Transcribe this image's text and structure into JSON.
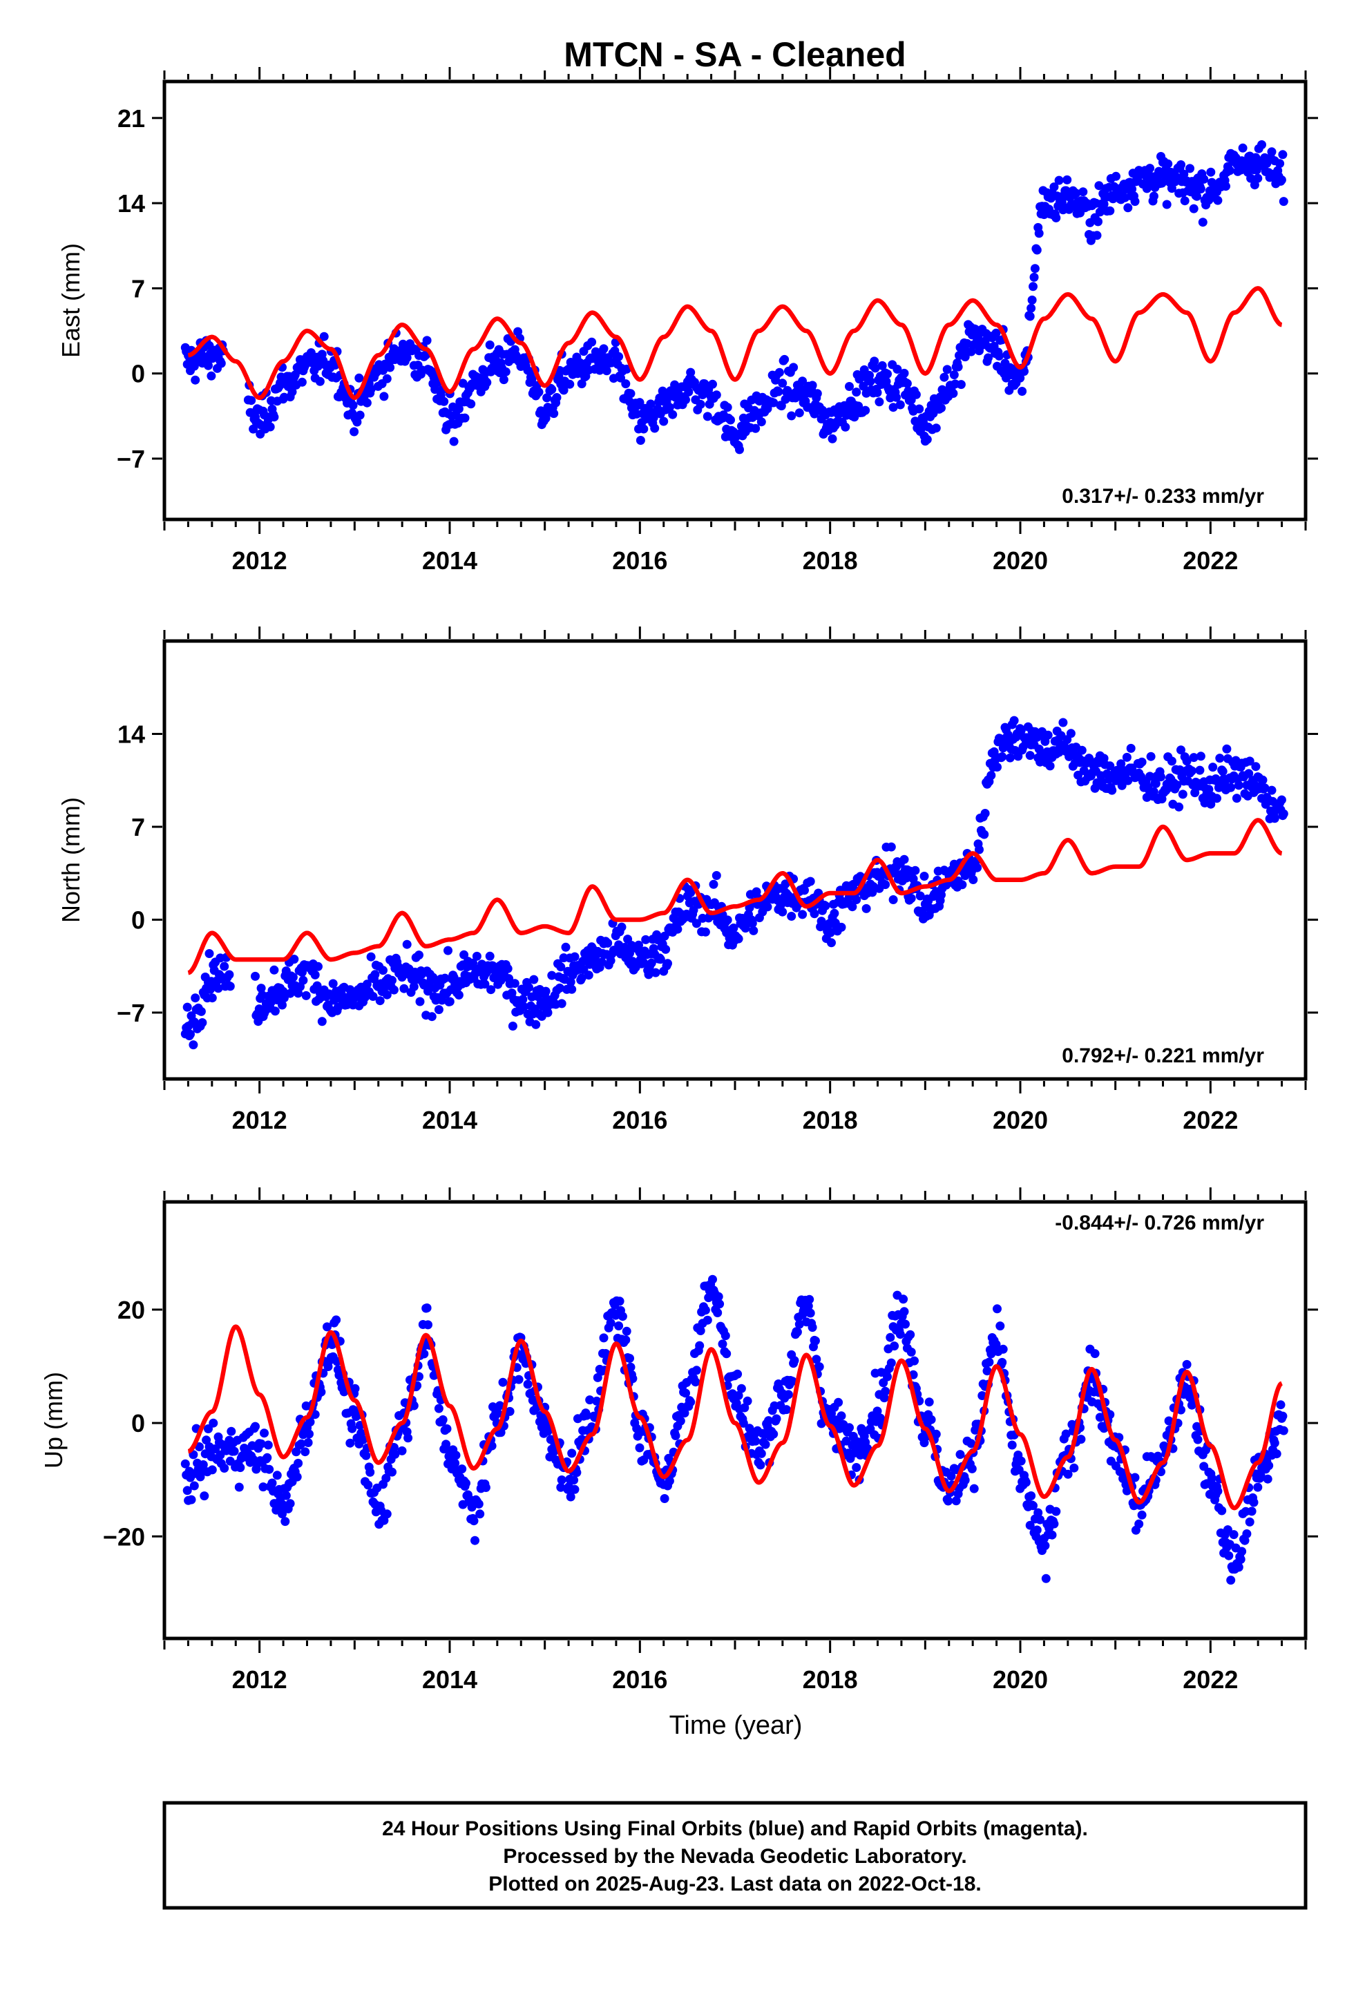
{
  "title": "MTCN  - SA - Cleaned",
  "xlabel": "Time (year)",
  "footer": {
    "line1": "24 Hour Positions Using Final Orbits (blue) and Rapid Orbits (magenta).",
    "line2": "Processed by the Nevada Geodetic Laboratory.",
    "line3": "Plotted on 2025-Aug-23. Last data on 2022-Oct-18."
  },
  "colors": {
    "data": "#0000ff",
    "model": "#ff0000",
    "frame": "#000000"
  },
  "chart_data": [
    {
      "type": "scatter",
      "ylabel": "East (mm)",
      "rate_label": "0.317+/- 0.233 mm/yr",
      "xlim": [
        2011.0,
        2023.0
      ],
      "ylim": [
        -12,
        24
      ],
      "xticks": [
        2012,
        2014,
        2016,
        2018,
        2020,
        2022
      ],
      "yticks": [
        21,
        14,
        7,
        0,
        -7
      ],
      "yticklabels": [
        "21",
        "14",
        "7",
        "0",
        "−7"
      ],
      "grid": false,
      "series": [
        {
          "kind": "points",
          "x": [
            2011.25,
            2011.5,
            2011.75,
            2012.0,
            2012.25,
            2012.5,
            2012.75,
            2013.0,
            2013.25,
            2013.5,
            2013.75,
            2014.0,
            2014.25,
            2014.5,
            2014.75,
            2015.0,
            2015.25,
            2015.5,
            2015.75,
            2016.0,
            2016.25,
            2016.5,
            2016.75,
            2017.0,
            2017.25,
            2017.5,
            2017.75,
            2018.0,
            2018.25,
            2018.5,
            2018.75,
            2019.0,
            2019.25,
            2019.5,
            2019.75,
            2020.0,
            2020.25,
            2020.5,
            2020.75,
            2021.0,
            2021.25,
            2021.5,
            2021.75,
            2022.0,
            2022.25,
            2022.5,
            2022.75
          ],
          "y": [
            1,
            1.5,
            0,
            -4,
            -1,
            0.5,
            1,
            -3,
            0,
            2,
            1,
            -4,
            -1,
            1,
            1.5,
            -3,
            0,
            1,
            0.5,
            -4,
            -3,
            -1,
            -2,
            -5,
            -3,
            -1,
            -2,
            -4,
            -2,
            -0.5,
            -1,
            -4,
            -1,
            3,
            2,
            -1,
            14,
            14.5,
            13,
            15,
            16,
            16,
            15.5,
            15,
            17,
            17.5,
            16
          ]
        },
        {
          "kind": "model",
          "x": [
            2011.25,
            2011.5,
            2011.75,
            2012.0,
            2012.25,
            2012.5,
            2012.75,
            2013.0,
            2013.25,
            2013.5,
            2013.75,
            2014.0,
            2014.25,
            2014.5,
            2014.75,
            2015.0,
            2015.25,
            2015.5,
            2015.75,
            2016.0,
            2016.25,
            2016.5,
            2016.75,
            2017.0,
            2017.25,
            2017.5,
            2017.75,
            2018.0,
            2018.25,
            2018.5,
            2018.75,
            2019.0,
            2019.25,
            2019.5,
            2019.75,
            2020.0,
            2020.25,
            2020.5,
            2020.75,
            2021.0,
            2021.25,
            2021.5,
            2021.75,
            2022.0,
            2022.25,
            2022.5,
            2022.75
          ],
          "y": [
            1.5,
            3,
            1,
            -2,
            1,
            3.5,
            2,
            -2,
            1.5,
            4,
            2,
            -1.5,
            2,
            4.5,
            2.5,
            -1,
            2.5,
            5,
            3,
            -0.5,
            3,
            5.5,
            3.5,
            -0.5,
            3.5,
            5.5,
            3.5,
            0,
            3.5,
            6,
            4,
            0,
            4,
            6,
            4,
            0.5,
            4.5,
            6.5,
            4.5,
            1,
            5,
            6.5,
            5,
            1,
            5,
            7,
            4
          ]
        }
      ]
    },
    {
      "type": "scatter",
      "ylabel": "North (mm)",
      "rate_label": "0.792+/- 0.221 mm/yr",
      "xlim": [
        2011.0,
        2023.0
      ],
      "ylim": [
        -12,
        21
      ],
      "xticks": [
        2012,
        2014,
        2016,
        2018,
        2020,
        2022
      ],
      "yticks": [
        14,
        7,
        0,
        -7
      ],
      "yticklabels": [
        "14",
        "7",
        "0",
        "−7"
      ],
      "grid": false,
      "series": [
        {
          "kind": "points",
          "x": [
            2011.25,
            2011.5,
            2011.75,
            2012.0,
            2012.25,
            2012.5,
            2012.75,
            2013.0,
            2013.25,
            2013.5,
            2013.75,
            2014.0,
            2014.25,
            2014.5,
            2014.75,
            2015.0,
            2015.25,
            2015.5,
            2015.75,
            2016.0,
            2016.25,
            2016.5,
            2016.75,
            2017.0,
            2017.25,
            2017.5,
            2017.75,
            2018.0,
            2018.25,
            2018.5,
            2018.75,
            2019.0,
            2019.25,
            2019.5,
            2019.75,
            2020.0,
            2020.25,
            2020.5,
            2020.75,
            2021.0,
            2021.25,
            2021.5,
            2021.75,
            2022.0,
            2022.25,
            2022.5,
            2022.75
          ],
          "y": [
            -8,
            -4,
            null,
            -6,
            -5,
            -4,
            -6,
            -6,
            -5,
            -4,
            -5,
            -5,
            -4,
            -4,
            -6,
            -6,
            -4,
            -3,
            -2,
            -3,
            -2,
            1,
            1,
            -1,
            1,
            2,
            2,
            0,
            2,
            3,
            4,
            1,
            3,
            4,
            13,
            14,
            13,
            13,
            11,
            11,
            11,
            10,
            11,
            10,
            11,
            10,
            8
          ]
        },
        {
          "kind": "model",
          "x": [
            2011.25,
            2011.5,
            2011.75,
            2012.0,
            2012.25,
            2012.5,
            2012.75,
            2013.0,
            2013.25,
            2013.5,
            2013.75,
            2014.0,
            2014.25,
            2014.5,
            2014.75,
            2015.0,
            2015.25,
            2015.5,
            2015.75,
            2016.0,
            2016.25,
            2016.5,
            2016.75,
            2017.0,
            2017.25,
            2017.5,
            2017.75,
            2018.0,
            2018.25,
            2018.5,
            2018.75,
            2019.0,
            2019.25,
            2019.5,
            2019.75,
            2020.0,
            2020.25,
            2020.5,
            2020.75,
            2021.0,
            2021.25,
            2021.5,
            2021.75,
            2022.0,
            2022.25,
            2022.5,
            2022.75
          ],
          "y": [
            -4,
            -1,
            -3,
            -3,
            -3,
            -1,
            -3,
            -2.5,
            -2,
            0.5,
            -2,
            -1.5,
            -1,
            1.5,
            -1,
            -0.5,
            -1,
            2.5,
            0,
            0,
            0.5,
            3,
            0.5,
            1,
            1.5,
            3.5,
            1,
            2,
            2,
            4.5,
            2,
            2.5,
            3,
            5,
            3,
            3,
            3.5,
            6,
            3.5,
            4,
            4,
            7,
            4.5,
            5,
            5,
            7.5,
            5
          ]
        }
      ]
    },
    {
      "type": "scatter",
      "ylabel": "Up (mm)",
      "rate_label": "-0.844+/- 0.726 mm/yr",
      "xlim": [
        2011.0,
        2023.0
      ],
      "ylim": [
        -38,
        39
      ],
      "xticks": [
        2012,
        2014,
        2016,
        2018,
        2020,
        2022
      ],
      "yticks": [
        20,
        0,
        -20
      ],
      "yticklabels": [
        "20",
        "0",
        "−20"
      ],
      "grid": false,
      "series": [
        {
          "kind": "points",
          "x": [
            2011.25,
            2011.5,
            2011.75,
            2012.0,
            2012.25,
            2012.5,
            2012.75,
            2013.0,
            2013.25,
            2013.5,
            2013.75,
            2014.0,
            2014.25,
            2014.5,
            2014.75,
            2015.0,
            2015.25,
            2015.5,
            2015.75,
            2016.0,
            2016.25,
            2016.5,
            2016.75,
            2017.0,
            2017.25,
            2017.5,
            2017.75,
            2018.0,
            2018.25,
            2018.5,
            2018.75,
            2019.0,
            2019.25,
            2019.5,
            2019.75,
            2020.0,
            2020.25,
            2020.5,
            2020.75,
            2021.0,
            2021.25,
            2021.5,
            2021.75,
            2022.0,
            2022.25,
            2022.5,
            2022.75
          ],
          "y": [
            -10,
            -5,
            null,
            -5,
            -15,
            0,
            15,
            0,
            -15,
            0,
            15,
            -5,
            -15,
            0,
            12,
            0,
            -10,
            2,
            20,
            0,
            -10,
            5,
            25,
            5,
            -5,
            5,
            20,
            0,
            -5,
            3,
            20,
            0,
            -12,
            -5,
            15,
            -10,
            -22,
            -5,
            8,
            -5,
            -15,
            -5,
            8,
            -10,
            -25,
            -10,
            0
          ]
        },
        {
          "kind": "model",
          "x": [
            2011.25,
            2011.5,
            2011.75,
            2012.0,
            2012.25,
            2012.5,
            2012.75,
            2013.0,
            2013.25,
            2013.5,
            2013.75,
            2014.0,
            2014.25,
            2014.5,
            2014.75,
            2015.0,
            2015.25,
            2015.5,
            2015.75,
            2016.0,
            2016.25,
            2016.5,
            2016.75,
            2017.0,
            2017.25,
            2017.5,
            2017.75,
            2018.0,
            2018.25,
            2018.5,
            2018.75,
            2019.0,
            2019.25,
            2019.5,
            2019.75,
            2020.0,
            2020.25,
            2020.5,
            2020.75,
            2021.0,
            2021.25,
            2021.5,
            2021.75,
            2022.0,
            2022.25,
            2022.5,
            2022.75
          ],
          "y": [
            -5,
            2,
            17,
            5,
            -6,
            1,
            16,
            4,
            -7,
            0,
            15.5,
            3,
            -8,
            -1,
            14.5,
            2,
            -8.5,
            -2,
            14,
            1,
            -9.5,
            -3,
            13,
            0,
            -10.5,
            -3.5,
            12,
            -0.5,
            -11,
            -4,
            11,
            -1,
            -12,
            -5,
            10,
            -2,
            -13,
            -6,
            9.5,
            -3,
            -14,
            -7,
            9,
            -4,
            -15,
            -7,
            7
          ]
        }
      ]
    }
  ]
}
